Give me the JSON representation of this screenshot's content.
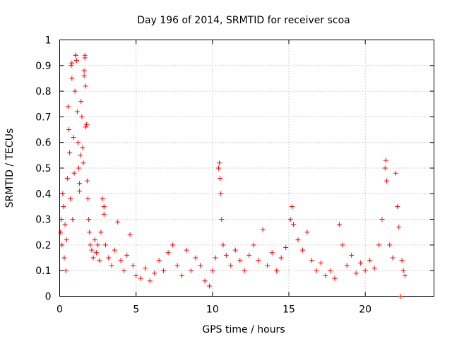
{
  "chart_data": {
    "type": "scatter",
    "title": "Day 196 of 2014, SRMTID for receiver scoa",
    "xlabel": "GPS time / hours",
    "ylabel": "SRMTID / TECUs",
    "xlim": [
      0,
      24.5
    ],
    "ylim": [
      0,
      1
    ],
    "x_ticks": [
      0,
      5,
      10,
      15,
      20
    ],
    "x_tick_labels": [
      "0",
      "5",
      "10",
      "15",
      "20"
    ],
    "y_ticks": [
      0,
      0.1,
      0.2,
      0.3,
      0.4,
      0.5,
      0.6,
      0.7,
      0.8,
      0.9,
      1
    ],
    "y_tick_labels": [
      "0",
      "0.1",
      "0.2",
      "0.3",
      "0.4",
      "0.5",
      "0.6",
      "0.7",
      "0.8",
      "0.9",
      "1"
    ],
    "grid": true,
    "marker": "+",
    "color": "#ff0000",
    "series": [
      {
        "name": "SRMTID",
        "points": [
          [
            0.05,
            0.25
          ],
          [
            0.1,
            0.3
          ],
          [
            0.15,
            0.2
          ],
          [
            0.2,
            0.4
          ],
          [
            0.25,
            0.35
          ],
          [
            0.3,
            0.15
          ],
          [
            0.35,
            0.28
          ],
          [
            0.4,
            0.1
          ],
          [
            0.45,
            0.22
          ],
          [
            0.5,
            0.46
          ],
          [
            0.55,
            0.74
          ],
          [
            0.6,
            0.65
          ],
          [
            0.65,
            0.56
          ],
          [
            0.7,
            0.38
          ],
          [
            0.75,
            0.9
          ],
          [
            0.8,
            0.85
          ],
          [
            0.85,
            0.3
          ],
          [
            0.9,
            0.62
          ],
          [
            0.95,
            0.48
          ],
          [
            1.0,
            0.8
          ],
          [
            1.05,
            0.94
          ],
          [
            1.1,
            0.92
          ],
          [
            1.15,
            0.72
          ],
          [
            1.2,
            0.6
          ],
          [
            1.25,
            0.5
          ],
          [
            1.3,
            0.44
          ],
          [
            1.35,
            0.55
          ],
          [
            1.4,
            0.76
          ],
          [
            1.45,
            0.7
          ],
          [
            1.5,
            0.58
          ],
          [
            1.55,
            0.52
          ],
          [
            1.6,
            0.88
          ],
          [
            1.65,
            0.93
          ],
          [
            1.7,
            0.66
          ],
          [
            1.75,
            0.67
          ],
          [
            1.8,
            0.45
          ],
          [
            1.85,
            0.38
          ],
          [
            1.9,
            0.3
          ],
          [
            1.95,
            0.25
          ],
          [
            2.0,
            0.2
          ],
          [
            2.1,
            0.18
          ],
          [
            2.2,
            0.15
          ],
          [
            2.3,
            0.22
          ],
          [
            2.4,
            0.17
          ],
          [
            2.5,
            0.2
          ],
          [
            2.6,
            0.14
          ],
          [
            2.7,
            0.25
          ],
          [
            2.8,
            0.38
          ],
          [
            2.9,
            0.32
          ],
          [
            3.0,
            0.2
          ],
          [
            3.2,
            0.15
          ],
          [
            3.4,
            0.12
          ],
          [
            3.6,
            0.18
          ],
          [
            3.8,
            0.29
          ],
          [
            4.0,
            0.14
          ],
          [
            4.2,
            0.1
          ],
          [
            4.4,
            0.16
          ],
          [
            4.6,
            0.24
          ],
          [
            4.8,
            0.12
          ],
          [
            5.0,
            0.08
          ],
          [
            5.3,
            0.07
          ],
          [
            5.6,
            0.11
          ],
          [
            5.9,
            0.06
          ],
          [
            6.2,
            0.09
          ],
          [
            6.5,
            0.14
          ],
          [
            6.8,
            0.1
          ],
          [
            7.1,
            0.17
          ],
          [
            7.4,
            0.2
          ],
          [
            7.7,
            0.12
          ],
          [
            8.0,
            0.08
          ],
          [
            8.3,
            0.18
          ],
          [
            8.6,
            0.1
          ],
          [
            8.9,
            0.15
          ],
          [
            9.2,
            0.12
          ],
          [
            9.5,
            0.06
          ],
          [
            9.8,
            0.04
          ],
          [
            10.0,
            0.1
          ],
          [
            10.2,
            0.15
          ],
          [
            10.4,
            0.5
          ],
          [
            10.45,
            0.52
          ],
          [
            10.5,
            0.46
          ],
          [
            10.55,
            0.4
          ],
          [
            10.6,
            0.3
          ],
          [
            10.7,
            0.2
          ],
          [
            10.9,
            0.16
          ],
          [
            11.2,
            0.12
          ],
          [
            11.5,
            0.18
          ],
          [
            11.8,
            0.14
          ],
          [
            12.1,
            0.1
          ],
          [
            12.4,
            0.16
          ],
          [
            12.7,
            0.2
          ],
          [
            13.0,
            0.14
          ],
          [
            13.3,
            0.26
          ],
          [
            13.6,
            0.12
          ],
          [
            13.9,
            0.17
          ],
          [
            14.2,
            0.1
          ],
          [
            14.5,
            0.15
          ],
          [
            14.8,
            0.19
          ],
          [
            15.1,
            0.3
          ],
          [
            15.2,
            0.35
          ],
          [
            15.3,
            0.28
          ],
          [
            15.6,
            0.22
          ],
          [
            15.9,
            0.18
          ],
          [
            16.2,
            0.25
          ],
          [
            16.5,
            0.14
          ],
          [
            16.8,
            0.1
          ],
          [
            17.1,
            0.13
          ],
          [
            17.4,
            0.08
          ],
          [
            17.7,
            0.1
          ],
          [
            18.0,
            0.07
          ],
          [
            18.3,
            0.28
          ],
          [
            18.5,
            0.2
          ],
          [
            18.8,
            0.12
          ],
          [
            19.1,
            0.16
          ],
          [
            19.4,
            0.09
          ],
          [
            19.7,
            0.13
          ],
          [
            20.0,
            0.1
          ],
          [
            20.3,
            0.14
          ],
          [
            20.6,
            0.11
          ],
          [
            20.9,
            0.2
          ],
          [
            21.1,
            0.3
          ],
          [
            21.3,
            0.5
          ],
          [
            21.35,
            0.53
          ],
          [
            21.4,
            0.45
          ],
          [
            21.6,
            0.2
          ],
          [
            21.8,
            0.15
          ],
          [
            22.0,
            0.48
          ],
          [
            22.1,
            0.35
          ],
          [
            22.2,
            0.27
          ],
          [
            22.3,
            0.0
          ],
          [
            22.4,
            0.14
          ],
          [
            22.5,
            0.1
          ],
          [
            22.6,
            0.08
          ],
          [
            1.05,
            0.94
          ],
          [
            0.8,
            0.91
          ],
          [
            1.65,
            0.94
          ],
          [
            1.6,
            0.86
          ],
          [
            1.7,
            0.82
          ],
          [
            1.3,
            0.41
          ],
          [
            2.9,
            0.35
          ]
        ]
      }
    ]
  }
}
